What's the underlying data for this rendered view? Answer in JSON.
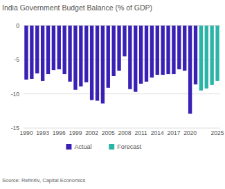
{
  "chart_data": {
    "type": "bar",
    "title": "India Government Budget Balance (% of GDP)",
    "source": "Source: Refinitiv, Capital Economics",
    "categories": [
      "1990",
      null,
      null,
      "1993",
      null,
      null,
      "1996",
      null,
      null,
      "1999",
      null,
      null,
      "2002",
      null,
      null,
      "2005",
      null,
      null,
      "2008",
      null,
      null,
      "2011",
      null,
      null,
      "2014",
      null,
      null,
      "2017",
      null,
      null,
      "2020",
      null,
      null,
      null,
      null,
      "2025"
    ],
    "series": [
      {
        "name": "Actual",
        "color": "#3a21b5",
        "values": [
          -7.9,
          -7.8,
          -7.0,
          -8.1,
          -7.1,
          -6.5,
          -6.4,
          -7.1,
          -8.2,
          -9.4,
          -8.9,
          -8.3,
          -10.9,
          -11.0,
          -11.4,
          -9.1,
          -7.4,
          -6.6,
          -4.5,
          -9.3,
          -9.7,
          -8.5,
          -8.2,
          -7.6,
          -7.2,
          -7.2,
          -7.1,
          -7.1,
          -6.4,
          -6.6,
          -12.9,
          -8.6,
          null,
          null,
          null,
          null
        ]
      },
      {
        "name": "Forecast",
        "color": "#2bb5a8",
        "values": [
          null,
          null,
          null,
          null,
          null,
          null,
          null,
          null,
          null,
          null,
          null,
          null,
          null,
          null,
          null,
          null,
          null,
          null,
          null,
          null,
          null,
          null,
          null,
          null,
          null,
          null,
          null,
          null,
          null,
          null,
          null,
          null,
          -9.5,
          -9.2,
          -8.7,
          -8.1
        ]
      }
    ],
    "ylim": [
      -15,
      0
    ],
    "yticks": [
      -15,
      -10,
      -5,
      0
    ],
    "grid": true,
    "legend": "bottom"
  }
}
